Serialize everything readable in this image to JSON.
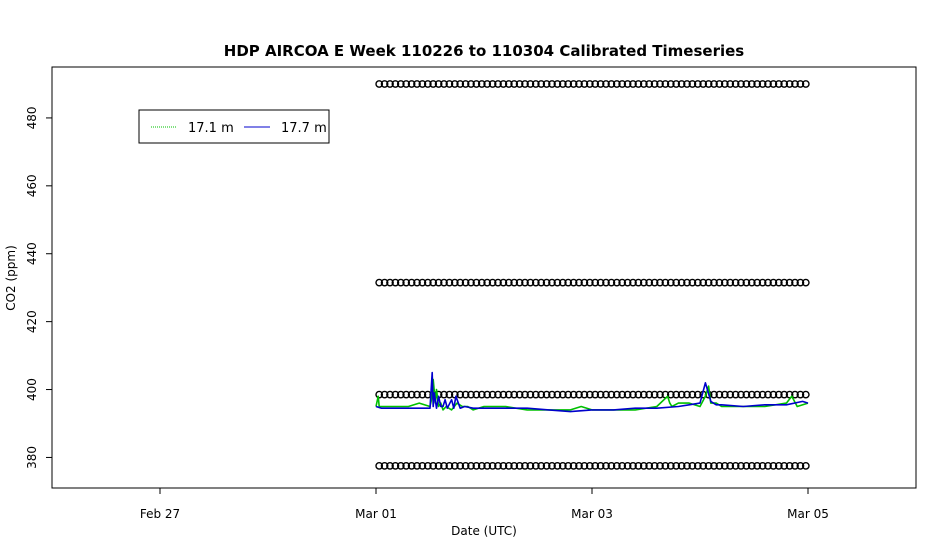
{
  "chart_data": {
    "type": "line",
    "title": "HDP AIRCOA E  Week 110226 to 110304  Calibrated Timeseries",
    "xlabel": "Date (UTC)",
    "ylabel": "CO2 (ppm)",
    "x_unit": "days from Feb 26 00:00 UTC",
    "xlim": [
      0,
      8
    ],
    "ylim": [
      371,
      495
    ],
    "x_ticks": [
      {
        "value": 1,
        "label": "Feb 27"
      },
      {
        "value": 3,
        "label": "Mar 01"
      },
      {
        "value": 5,
        "label": "Mar 03"
      },
      {
        "value": 7,
        "label": "Mar 05"
      }
    ],
    "y_ticks": [
      {
        "value": 380,
        "label": "380"
      },
      {
        "value": 400,
        "label": "400"
      },
      {
        "value": 420,
        "label": "420"
      },
      {
        "value": 440,
        "label": "440"
      },
      {
        "value": 460,
        "label": "460"
      },
      {
        "value": 480,
        "label": "480"
      }
    ],
    "grid": false,
    "legend_position": "top-left",
    "series": [
      {
        "name": "17.1 m",
        "color": "#00c000",
        "x": [
          3.0,
          3.02,
          3.03,
          3.05,
          3.1,
          3.2,
          3.3,
          3.4,
          3.5,
          3.52,
          3.53,
          3.55,
          3.56,
          3.58,
          3.6,
          3.62,
          3.65,
          3.7,
          3.75,
          3.8,
          3.85,
          3.9,
          4.0,
          4.2,
          4.4,
          4.6,
          4.8,
          4.9,
          5.0,
          5.2,
          5.4,
          5.6,
          5.7,
          5.72,
          5.74,
          5.8,
          5.9,
          6.0,
          6.05,
          6.08,
          6.1,
          6.15,
          6.2,
          6.4,
          6.6,
          6.8,
          6.85,
          6.9,
          7.0
        ],
        "values": [
          395,
          398,
          395,
          395,
          395,
          395,
          395,
          396,
          395,
          398,
          403,
          396,
          400,
          395,
          396,
          394,
          395,
          394,
          396,
          395,
          395,
          394,
          395,
          395,
          394,
          394,
          394,
          395,
          394,
          394,
          394,
          395,
          398,
          396,
          395,
          396,
          396,
          395,
          398,
          401,
          396,
          396,
          395,
          395,
          395,
          396,
          398,
          395,
          396
        ]
      },
      {
        "name": "17.7 m",
        "color": "#0000cc",
        "x": [
          3.0,
          3.05,
          3.1,
          3.2,
          3.3,
          3.4,
          3.5,
          3.52,
          3.53,
          3.54,
          3.56,
          3.58,
          3.6,
          3.62,
          3.64,
          3.66,
          3.7,
          3.72,
          3.74,
          3.78,
          3.82,
          3.9,
          4.0,
          4.2,
          4.4,
          4.6,
          4.8,
          5.0,
          5.2,
          5.4,
          5.6,
          5.8,
          5.9,
          6.0,
          6.05,
          6.1,
          6.15,
          6.2,
          6.4,
          6.6,
          6.8,
          6.95,
          7.0
        ],
        "values": [
          395,
          394.5,
          394.5,
          394.5,
          394.5,
          394.5,
          394.5,
          405,
          395,
          399,
          394.5,
          398,
          395,
          395,
          397,
          394.5,
          397,
          394.5,
          398,
          394.5,
          395,
          394.5,
          394.5,
          394.5,
          394.5,
          394,
          393.5,
          394,
          394,
          394.5,
          394.5,
          395,
          395.5,
          396,
          402,
          396.5,
          395.5,
          395.5,
          395,
          395.5,
          395.5,
          396.5,
          396
        ]
      }
    ],
    "reference_points": {
      "marker": "open circle",
      "color": "#000000",
      "x_start": 3.03,
      "x_end": 7.0,
      "spacing_days": 0.05,
      "levels": [
        377.5,
        398.5,
        431.5,
        490
      ]
    }
  }
}
